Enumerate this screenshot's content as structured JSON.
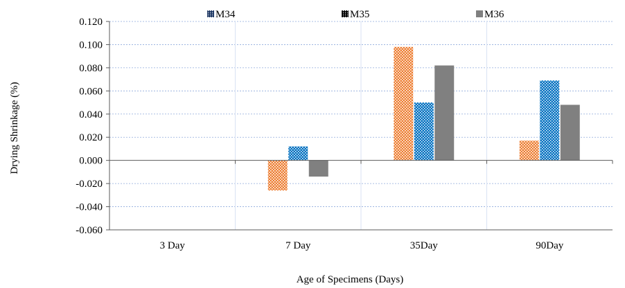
{
  "chart_data": {
    "type": "bar",
    "title": "",
    "xlabel": "Age of Specimens (Days)",
    "ylabel": "Drying Shrinkage (%)",
    "categories": [
      "3 Day",
      "7 Day",
      "35Day",
      "90Day"
    ],
    "ylim": [
      -0.06,
      0.12
    ],
    "yticks": [
      "-0.060",
      "-0.040",
      "-0.020",
      "0.000",
      "0.020",
      "0.040",
      "0.060",
      "0.080",
      "0.100",
      "0.120"
    ],
    "ytick_values": [
      -0.06,
      -0.04,
      -0.02,
      0.0,
      0.02,
      0.04,
      0.06,
      0.08,
      0.1,
      0.12
    ],
    "grid": true,
    "legend_position": "top",
    "legend": [
      "M34",
      "M35",
      "M36"
    ],
    "series": [
      {
        "name": "M34",
        "color": "#ED7D31",
        "pattern": "dots",
        "values": [
          0,
          -0.026,
          0.098,
          0.017
        ]
      },
      {
        "name": "M35",
        "color": "#0070C0",
        "pattern": "dots",
        "values": [
          0,
          0.012,
          0.05,
          0.069
        ]
      },
      {
        "name": "M36",
        "color": "#808080",
        "pattern": "solid",
        "values": [
          0,
          -0.014,
          0.082,
          0.048
        ]
      }
    ]
  }
}
